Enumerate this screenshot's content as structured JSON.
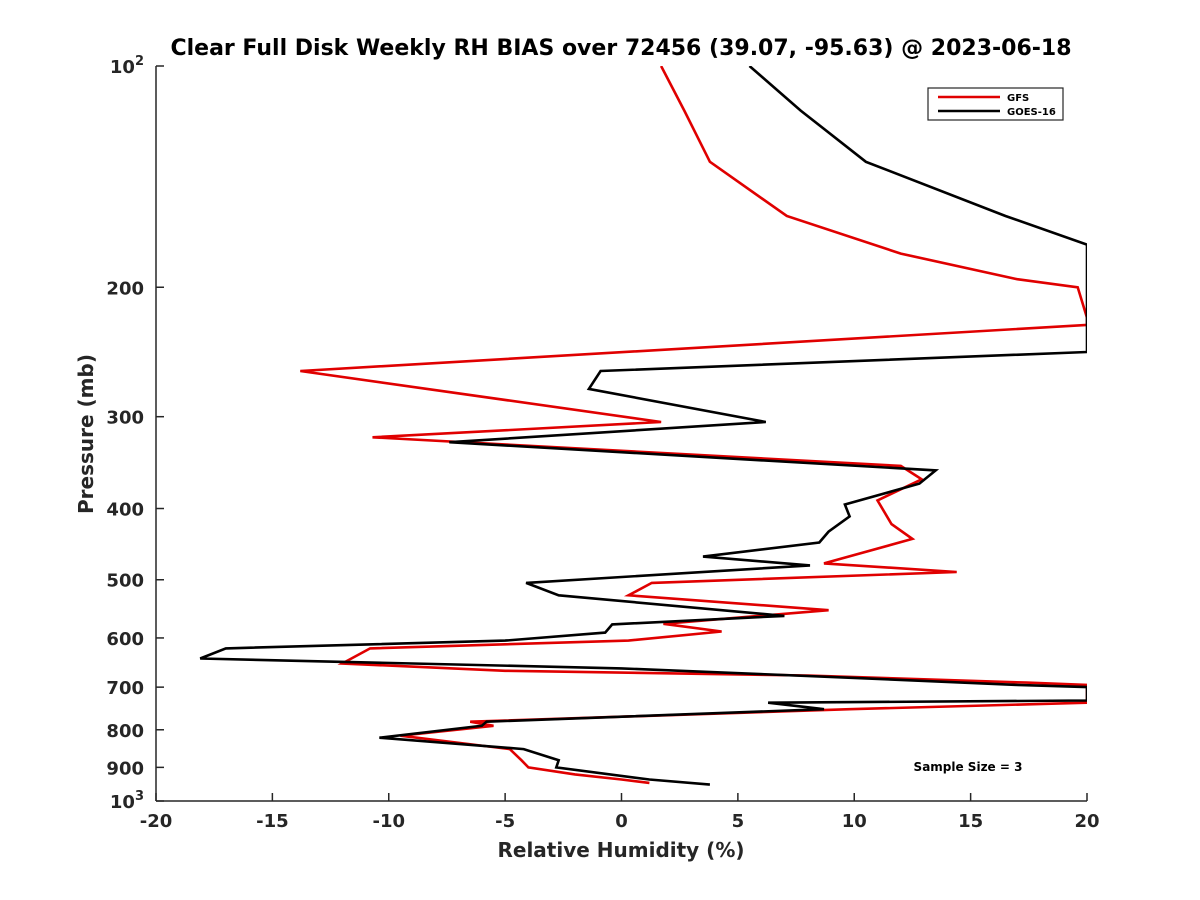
{
  "chart_data": {
    "type": "line",
    "title": "Clear Full Disk Weekly RH BIAS over 72456 (39.07, -95.63) @ 2023-06-18",
    "xlabel": "Relative Humidity (%)",
    "ylabel": "Pressure (mb)",
    "xlim": [
      -20,
      20
    ],
    "ylim": [
      100,
      1000
    ],
    "yscale": "log",
    "yreversed": true,
    "x_ticks": [
      -20,
      -15,
      -10,
      -5,
      0,
      5,
      10,
      15,
      20
    ],
    "x_tick_labels": [
      "-20",
      "-15",
      "-10",
      "-5",
      "0",
      "5",
      "10",
      "15",
      "20"
    ],
    "y_ticks": [
      {
        "value": 100,
        "base": "10",
        "exp": "2"
      },
      {
        "value": 200,
        "label": "200"
      },
      {
        "value": 300,
        "label": "300"
      },
      {
        "value": 400,
        "label": "400"
      },
      {
        "value": 500,
        "label": "500"
      },
      {
        "value": 600,
        "label": "600"
      },
      {
        "value": 700,
        "label": "700"
      },
      {
        "value": 800,
        "label": "800"
      },
      {
        "value": 900,
        "label": "900"
      },
      {
        "value": 1000,
        "base": "10",
        "exp": "3"
      }
    ],
    "legend_position": "top-right",
    "annotation": "Sample Size = 3",
    "series": [
      {
        "name": "GFS",
        "color": "#e00000",
        "points": [
          [
            1.7,
            100
          ],
          [
            2.7,
            115
          ],
          [
            3.8,
            135
          ],
          [
            7.1,
            160
          ],
          [
            12.0,
            180
          ],
          [
            17.0,
            195
          ],
          [
            19.6,
            200
          ],
          [
            20.0,
            220
          ],
          [
            20.0,
            225
          ],
          [
            -13.8,
            260
          ],
          [
            1.7,
            305
          ],
          [
            -10.7,
            320
          ],
          [
            12.0,
            350
          ],
          [
            12.6,
            360
          ],
          [
            12.9,
            365
          ],
          [
            11.0,
            390
          ],
          [
            11.6,
            420
          ],
          [
            12.5,
            440
          ],
          [
            8.7,
            475
          ],
          [
            14.4,
            488
          ],
          [
            1.3,
            505
          ],
          [
            0.3,
            525
          ],
          [
            8.9,
            550
          ],
          [
            1.8,
            574
          ],
          [
            4.3,
            588
          ],
          [
            0.3,
            605
          ],
          [
            -10.8,
            620
          ],
          [
            -12.0,
            650
          ],
          [
            -5.0,
            665
          ],
          [
            8.0,
            675
          ],
          [
            17.4,
            690
          ],
          [
            20.0,
            695
          ],
          [
            20.0,
            730
          ],
          [
            20.0,
            735
          ],
          [
            9.8,
            750
          ],
          [
            -6.5,
            780
          ],
          [
            -5.5,
            790
          ],
          [
            -9.5,
            815
          ],
          [
            -4.8,
            850
          ],
          [
            -4.3,
            880
          ],
          [
            -4.0,
            900
          ],
          [
            -2.0,
            920
          ],
          [
            0.0,
            935
          ],
          [
            1.2,
            945
          ]
        ]
      },
      {
        "name": "GOES-16",
        "color": "#000000",
        "points": [
          [
            5.5,
            100
          ],
          [
            7.7,
            115
          ],
          [
            10.5,
            135
          ],
          [
            16.5,
            160
          ],
          [
            20.0,
            175
          ],
          [
            20.0,
            245
          ],
          [
            -0.9,
            260
          ],
          [
            -1.4,
            275
          ],
          [
            6.2,
            305
          ],
          [
            -7.4,
            325
          ],
          [
            13.5,
            355
          ],
          [
            12.8,
            370
          ],
          [
            9.6,
            395
          ],
          [
            9.8,
            410
          ],
          [
            8.9,
            430
          ],
          [
            8.5,
            445
          ],
          [
            3.5,
            465
          ],
          [
            8.1,
            478
          ],
          [
            -4.1,
            505
          ],
          [
            -2.7,
            525
          ],
          [
            7.0,
            560
          ],
          [
            -0.4,
            575
          ],
          [
            -0.7,
            590
          ],
          [
            -5.0,
            605
          ],
          [
            -17.0,
            620
          ],
          [
            -18.1,
            640
          ],
          [
            0.0,
            660
          ],
          [
            10.0,
            680
          ],
          [
            17.0,
            695
          ],
          [
            20.0,
            700
          ],
          [
            20.0,
            730
          ],
          [
            6.3,
            735
          ],
          [
            8.7,
            750
          ],
          [
            -5.8,
            780
          ],
          [
            -6.0,
            790
          ],
          [
            -10.4,
            820
          ],
          [
            -4.2,
            850
          ],
          [
            -2.7,
            880
          ],
          [
            -2.8,
            900
          ],
          [
            1.2,
            935
          ],
          [
            3.8,
            950
          ]
        ]
      }
    ]
  }
}
